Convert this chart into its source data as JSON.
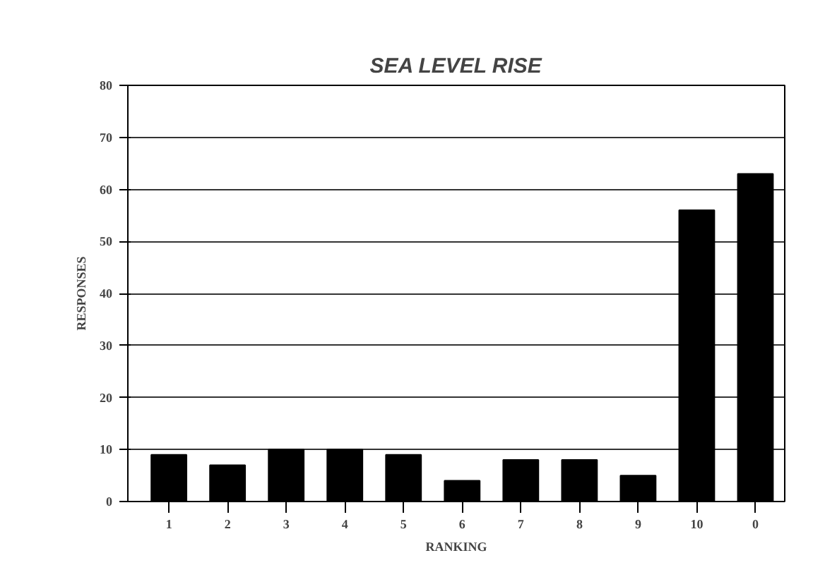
{
  "chart_data": {
    "type": "bar",
    "title": "SEA LEVEL RISE",
    "xlabel": "RANKING",
    "ylabel": "RESPONSES",
    "categories": [
      "1",
      "2",
      "3",
      "4",
      "5",
      "6",
      "7",
      "8",
      "9",
      "10",
      "0"
    ],
    "values": [
      9,
      7,
      10,
      10,
      9,
      4,
      8,
      8,
      5,
      56,
      63
    ],
    "color": "#000000",
    "ylim": [
      0,
      80
    ],
    "yticks": [
      0,
      10,
      20,
      30,
      40,
      50,
      60,
      70,
      80
    ],
    "grid": "y"
  }
}
